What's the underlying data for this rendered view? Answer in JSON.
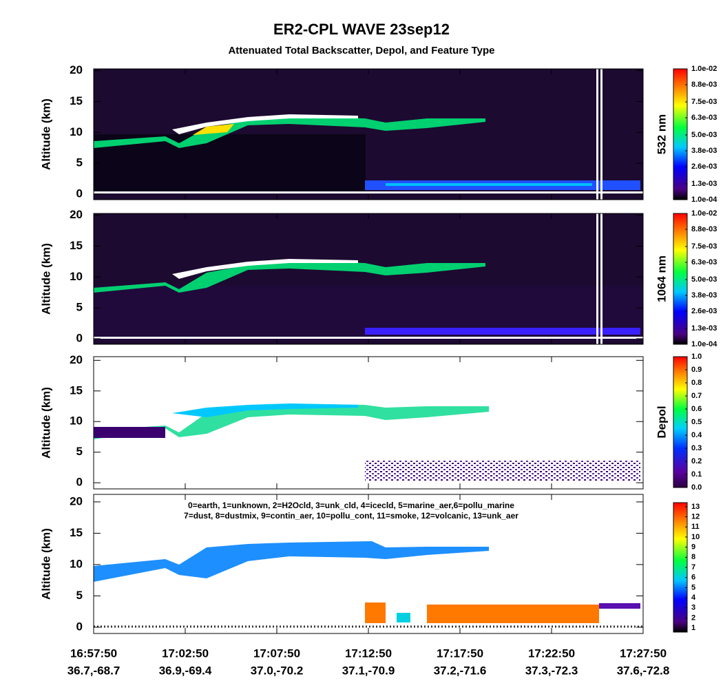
{
  "title": "ER2-CPL WAVE 23sep12",
  "subtitle": "Attenuated Total Backscatter, Depol, and Feature Type",
  "time_axis": [
    {
      "time": "16:57:50",
      "location": "36.7,-68.7"
    },
    {
      "time": "17:02:50",
      "location": "36.9,-69.4"
    },
    {
      "time": "17:07:50",
      "location": "37.0,-70.2"
    },
    {
      "time": "17:12:50",
      "location": "37.1,-70.9"
    },
    {
      "time": "17:17:50",
      "location": "37.2,-71.6"
    },
    {
      "time": "17:22:50",
      "location": "37.3,-72.3"
    },
    {
      "time": "17:27:50",
      "location": "37.6,-72.8"
    }
  ],
  "chart_data": [
    {
      "type": "heatmap",
      "y_label": "Altitude (km)",
      "ylim": [
        -0.9,
        20.3
      ],
      "yticks": [
        0,
        5,
        10,
        15,
        20
      ],
      "colorbar": {
        "label": "532 nm",
        "clim": [
          0.0001,
          0.01
        ],
        "ticks": [
          {
            "value": 0.0001,
            "label": "1.0e-04"
          },
          {
            "value": 0.0013,
            "label": "1.3e-03"
          },
          {
            "value": 0.0026,
            "label": "2.6e-03"
          },
          {
            "value": 0.0038,
            "label": "3.8e-03"
          },
          {
            "value": 0.005,
            "label": "5.0e-03"
          },
          {
            "value": 0.0063,
            "label": "6.3e-03"
          },
          {
            "value": 0.0075,
            "label": "7.5e-03"
          },
          {
            "value": 0.0088,
            "label": "8.8e-03"
          },
          {
            "value": 0.01,
            "label": "1.0e-02"
          }
        ]
      }
    },
    {
      "type": "heatmap",
      "y_label": "Altitude (km)",
      "ylim": [
        -0.9,
        20.3
      ],
      "yticks": [
        0,
        5,
        10,
        15,
        20
      ],
      "colorbar": {
        "label": "1064 nm",
        "clim": [
          0.0001,
          0.01
        ],
        "ticks": [
          {
            "value": 0.0001,
            "label": "1.0e-04"
          },
          {
            "value": 0.0013,
            "label": "1.3e-03"
          },
          {
            "value": 0.0026,
            "label": "2.6e-03"
          },
          {
            "value": 0.0038,
            "label": "3.8e-03"
          },
          {
            "value": 0.005,
            "label": "5.0e-03"
          },
          {
            "value": 0.0063,
            "label": "6.3e-03"
          },
          {
            "value": 0.0075,
            "label": "7.5e-03"
          },
          {
            "value": 0.0088,
            "label": "8.8e-03"
          },
          {
            "value": 0.01,
            "label": "1.0e-02"
          }
        ]
      }
    },
    {
      "type": "heatmap",
      "y_label": "Altitude (km)",
      "ylim": [
        -1,
        20.6
      ],
      "yticks": [
        0,
        5,
        10,
        15,
        20
      ],
      "colorbar": {
        "label": "Depol",
        "clim": [
          0,
          1
        ],
        "ticks": [
          {
            "value": 0,
            "label": "0.0"
          },
          0.1,
          0.2,
          0.3,
          0.4,
          0.5,
          0.6,
          0.7,
          0.8,
          0.9,
          {
            "value": 1,
            "label": "1.0"
          }
        ]
      }
    },
    {
      "type": "heatmap",
      "y_label": "Altitude (km)",
      "ylim": [
        -1,
        21.2
      ],
      "yticks": [
        0,
        5,
        10,
        15,
        20
      ],
      "legend_lines": [
        "0=earth, 1=unknown, 2=H2Ocld, 3=unk_cld, 4=icecld, 5=marine_aer,6=pollu_marine",
        "7=dust, 8=dustmix, 9=contin_aer, 10=pollu_cont, 11=smoke, 12=volcanic, 13=unk_aer"
      ],
      "colorbar": {
        "clim": [
          0.6,
          13.4
        ],
        "ticks": [
          1,
          2,
          3,
          4,
          5,
          6,
          7,
          8,
          9,
          10,
          11,
          12,
          13
        ]
      }
    }
  ]
}
